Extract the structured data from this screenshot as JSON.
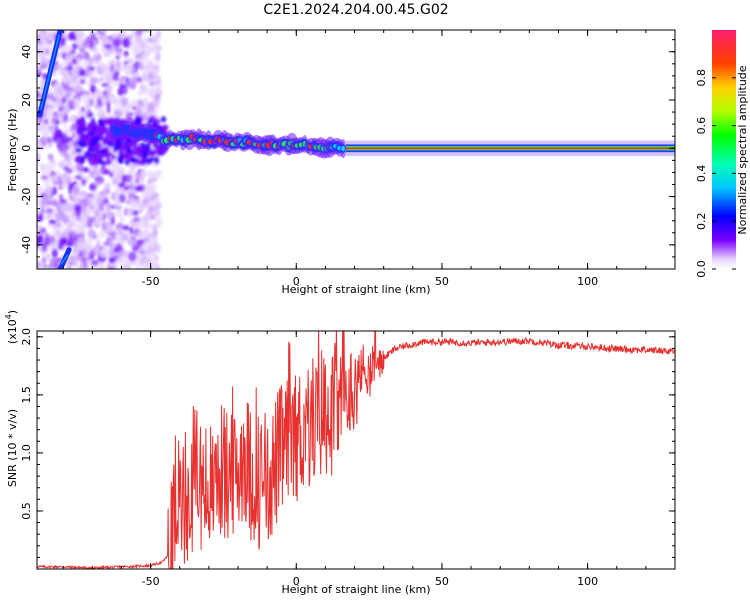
{
  "title": "C2E1.2024.204.00.45.G02",
  "chart_data": [
    {
      "type": "heatmap",
      "xlabel": "Height of straight line (km)",
      "ylabel": "Frequency (Hz)",
      "xlim": [
        -89,
        130
      ],
      "ylim": [
        -50,
        49
      ],
      "xticks": [
        -50,
        0,
        50,
        100
      ],
      "yticks": [
        -40,
        -20,
        0,
        20,
        40
      ],
      "colorbar": {
        "label": "Normalized spectral amplitude",
        "range": [
          0,
          1
        ],
        "ticks": [
          0.0,
          0.2,
          0.4,
          0.6,
          0.8
        ]
      },
      "features": {
        "steep_line_segments": [
          {
            "x": [
              -88,
              -81
            ],
            "y": [
              14,
              49
            ]
          },
          {
            "x": [
              -81,
              -78
            ],
            "y": [
              -50,
              -42
            ]
          }
        ],
        "central_trace": [
          {
            "x": -62,
            "y": 8
          },
          {
            "x": -55,
            "y": 7
          },
          {
            "x": -50,
            "y": 6
          },
          {
            "x": -45,
            "y": 3
          },
          {
            "x": -35,
            "y": 4
          },
          {
            "x": -25,
            "y": 3
          },
          {
            "x": -15,
            "y": 2
          },
          {
            "x": -5,
            "y": 1
          },
          {
            "x": 5,
            "y": 1
          },
          {
            "x": 17,
            "y": 0
          },
          {
            "x": 130,
            "y": 0
          }
        ]
      }
    },
    {
      "type": "line",
      "xlabel": "Height of straight line (km)",
      "ylabel": "SNR (10 * v/v)",
      "scale_note": "(x10",
      "scale_exponent": "4",
      "xlim": [
        -89,
        130
      ],
      "ylim": [
        0,
        2.05
      ],
      "xticks": [
        -50,
        0,
        50,
        100
      ],
      "yticks": [
        0.5,
        1.0,
        1.5,
        2.0
      ],
      "ytick_labels": [
        "0.5",
        "1.0",
        "1.5",
        "2.0"
      ],
      "series": [
        {
          "color": "#e8302f",
          "x": [
            -89,
            -80,
            -70,
            -60,
            -50,
            -46,
            -44,
            -43,
            -42,
            -40,
            -38,
            -36,
            -34,
            -32,
            -30,
            -28,
            -26,
            -24,
            -22,
            -20,
            -18,
            -16,
            -14,
            -12,
            -10,
            -8,
            -6,
            -4,
            -2,
            0,
            2,
            4,
            6,
            8,
            10,
            12,
            14,
            16,
            18,
            20,
            22,
            24,
            26,
            28,
            30,
            34,
            38,
            42,
            46,
            50,
            60,
            70,
            80,
            85,
            90,
            100,
            110,
            120,
            130
          ],
          "y": [
            0.02,
            0.02,
            0.01,
            0.02,
            0.03,
            0.06,
            0.12,
            0.2,
            0.45,
            0.65,
            0.6,
            0.7,
            0.95,
            0.75,
            0.7,
            0.8,
            0.9,
            0.85,
            0.8,
            0.9,
            1.1,
            0.9,
            0.85,
            0.8,
            0.85,
            0.9,
            1.05,
            1.1,
            1.15,
            1.2,
            1.25,
            1.3,
            1.35,
            1.4,
            1.45,
            1.4,
            1.45,
            1.5,
            1.55,
            1.6,
            1.65,
            1.7,
            1.75,
            1.78,
            1.82,
            1.9,
            1.93,
            1.95,
            1.96,
            1.96,
            1.95,
            1.96,
            1.97,
            1.95,
            1.93,
            1.92,
            1.9,
            1.89,
            1.88
          ]
        }
      ]
    }
  ]
}
